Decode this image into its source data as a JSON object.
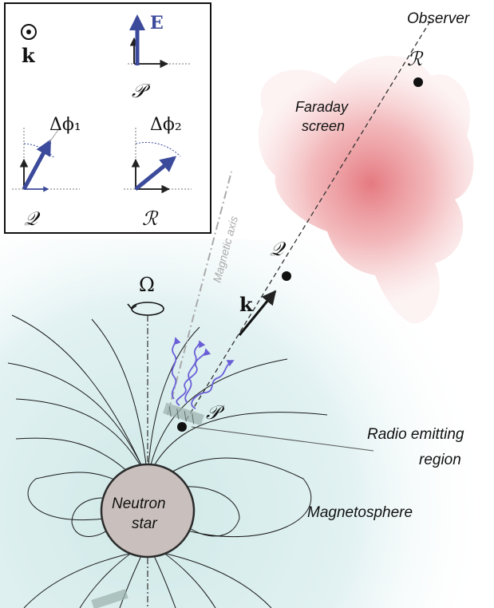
{
  "labels": {
    "observer": "Observer",
    "faraday_screen_line1": "Faraday",
    "faraday_screen_line2": "screen",
    "magnetic_axis": "Magnetic axis",
    "radio_region_line1": "Radio emitting",
    "radio_region_line2": "region",
    "magnetosphere": "Magnetosphere",
    "neutron_star_line1": "Neutron",
    "neutron_star_line2": "star",
    "omega": "Ω",
    "k_vector": "k",
    "point_P": "𝒫",
    "point_Q": "𝒬",
    "point_R": "ℛ"
  },
  "inset": {
    "k_label": "k",
    "E_label": "E",
    "P_label": "𝒫",
    "Q_label": "𝒬",
    "R_label": "ℛ",
    "dphi1_label": "Δϕ₁",
    "dphi2_label": "Δϕ₂"
  },
  "colors": {
    "polarization_arrow": "#3b4a9a",
    "screen": "#e06d74",
    "magnetosphere": "#dcefef",
    "star_fill": "#c9c0bd",
    "wave": "#6a5fd6"
  }
}
